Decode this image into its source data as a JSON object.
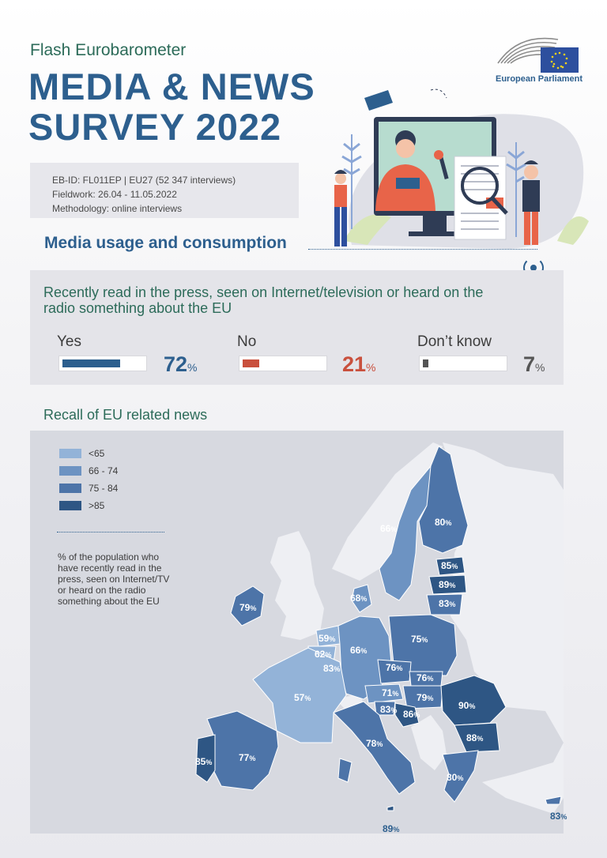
{
  "header": {
    "subtitle": "Flash Eurobarometer",
    "title_line1": "MEDIA & NEWS",
    "title_line2": "SURVEY 2022",
    "logo_text": "European Parliament"
  },
  "info": {
    "line1": "EB-ID: FL011EP  |  EU27 (52 347 interviews)",
    "line2": "Fieldwork: 26.04 - 11.05.2022",
    "line3": "Methodology: online interviews"
  },
  "section_title": "Media usage and consumption",
  "question": "Recently read in the press, seen on Internet/television or heard on the radio something about the EU",
  "answers": [
    {
      "label": "Yes",
      "value": "72",
      "unit": "%",
      "fraction": 0.72,
      "color": "#2d5f8e"
    },
    {
      "label": "No",
      "value": "21",
      "unit": "%",
      "fraction": 0.21,
      "color": "#c9503d"
    },
    {
      "label": "Don’t know",
      "value": "7",
      "unit": "%",
      "fraction": 0.07,
      "color": "#555555"
    }
  ],
  "recall_title": "Recall of EU related news",
  "legend": [
    {
      "label": "<65",
      "color": "#93b3d8"
    },
    {
      "label": "66 - 74",
      "color": "#6d93c2"
    },
    {
      "label": "75 - 84",
      "color": "#4d74a8"
    },
    {
      "label": ">85",
      "color": "#2e5684"
    }
  ],
  "note": "% of the population who have recently read in the press, seen on Internet/TV or heard on the radio something about the EU",
  "countries": [
    {
      "id": "ie",
      "value": "79"
    },
    {
      "id": "se",
      "value": "66"
    },
    {
      "id": "fi",
      "value": "80"
    },
    {
      "id": "ee",
      "value": "85"
    },
    {
      "id": "lv",
      "value": "89"
    },
    {
      "id": "lt",
      "value": "83"
    },
    {
      "id": "dk",
      "value": "68"
    },
    {
      "id": "nl",
      "value": "59"
    },
    {
      "id": "be",
      "value": "62"
    },
    {
      "id": "lu",
      "value": "83"
    },
    {
      "id": "de",
      "value": "66"
    },
    {
      "id": "pl",
      "value": "75"
    },
    {
      "id": "cz",
      "value": "76"
    },
    {
      "id": "sk",
      "value": "76"
    },
    {
      "id": "at",
      "value": "71"
    },
    {
      "id": "hu",
      "value": "79"
    },
    {
      "id": "si",
      "value": "83"
    },
    {
      "id": "hr",
      "value": "86"
    },
    {
      "id": "ro",
      "value": "90"
    },
    {
      "id": "bg",
      "value": "88"
    },
    {
      "id": "fr",
      "value": "57"
    },
    {
      "id": "it",
      "value": "78"
    },
    {
      "id": "es",
      "value": "77"
    },
    {
      "id": "pt",
      "value": "85"
    },
    {
      "id": "gr",
      "value": "80"
    },
    {
      "id": "mt",
      "value": "89"
    },
    {
      "id": "cy",
      "value": "83"
    }
  ],
  "unit": "%"
}
